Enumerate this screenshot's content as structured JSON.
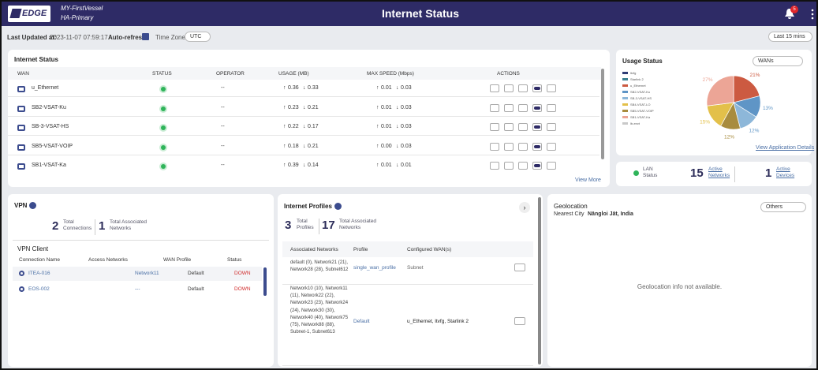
{
  "header": {
    "logo": "EDGE",
    "vessel": "MY-FirstVessel",
    "site": "HA-Primary",
    "title": "Internet Status",
    "notifications": "5"
  },
  "toolbar": {
    "last_updated_label": "Last Updated at:",
    "last_updated": "2023-11-07 07:59:17",
    "auto_refresh": "Auto-refresh",
    "time_zone_label": "Time Zone",
    "time_zone": "UTC",
    "range": "Last 15 mins"
  },
  "internet_status": {
    "title": "Internet Status",
    "columns": [
      "WAN",
      "STATUS",
      "OPERATOR",
      "USAGE (MB)",
      "MAX SPEED (Mbps)",
      "ACTIONS"
    ],
    "rows": [
      {
        "wan": "u_Ethernet",
        "operator": "--",
        "usage_up": "0.36",
        "usage_down": "0.33",
        "speed_up": "0.01",
        "speed_down": "0.03"
      },
      {
        "wan": "SB2-VSAT-Ku",
        "operator": "--",
        "usage_up": "0.23",
        "usage_down": "0.21",
        "speed_up": "0.01",
        "speed_down": "0.03"
      },
      {
        "wan": "SB-3-VSAT-HS",
        "operator": "--",
        "usage_up": "0.22",
        "usage_down": "0.17",
        "speed_up": "0.01",
        "speed_down": "0.03"
      },
      {
        "wan": "SB5-VSAT-VOIP",
        "operator": "--",
        "usage_up": "0.18",
        "usage_down": "0.21",
        "speed_up": "0.00",
        "speed_down": "0.03"
      },
      {
        "wan": "SB1-VSAT-Ka",
        "operator": "--",
        "usage_up": "0.39",
        "usage_down": "0.14",
        "speed_up": "0.01",
        "speed_down": "0.01"
      }
    ],
    "view_more": "View More"
  },
  "chart_data": {
    "type": "pie",
    "title": "Usage Status",
    "selector": "WANs",
    "values": [
      21,
      13,
      12,
      12,
      15,
      27
    ],
    "value_labels": [
      "21%",
      "13%",
      "12%",
      "12%",
      "15%",
      "27%"
    ],
    "colors": [
      "#cc5a41",
      "#5f95c6",
      "#8db7d9",
      "#a88c3e",
      "#e3c04a",
      "#eca596"
    ],
    "legend": [
      {
        "name": "ltvfg",
        "color": "#2f3b75"
      },
      {
        "name": "Starlink 2",
        "color": "#3b7f8f"
      },
      {
        "name": "u_Ethernet",
        "color": "#cc5a41"
      },
      {
        "name": "SB2-VSAT-Ku",
        "color": "#5f95c6"
      },
      {
        "name": "SB-3-VSAT-HS",
        "color": "#8db7d9"
      },
      {
        "name": "SB4-VSAT-LO",
        "color": "#e3c04a"
      },
      {
        "name": "SB5-VSAT-VOIP",
        "color": "#a88c3e"
      },
      {
        "name": "SB1-VSAT-Ka",
        "color": "#eca596"
      },
      {
        "name": "lb-envt",
        "color": "#c9c9c9"
      }
    ],
    "details_link": "View Application Details"
  },
  "stats": {
    "lan": "LAN Status",
    "networks_count": 15,
    "networks_label": "Active Networks",
    "devices_count": 1,
    "devices_label": "Active Devices"
  },
  "vpn": {
    "title": "VPN",
    "connections_count": 2,
    "connections_label": "Total Connections",
    "networks_count": 1,
    "networks_label": "Total Associated Networks",
    "client_title": "VPN Client",
    "columns": [
      "Connection Name",
      "Access Networks",
      "WAN Profile",
      "Status"
    ],
    "rows": [
      [
        "ITEA-016",
        "Network11",
        "Default",
        "DOWN"
      ],
      [
        "EOS-002",
        "---",
        "Default",
        "DOWN"
      ]
    ]
  },
  "profiles": {
    "title": "Internet Profiles",
    "profiles_count": 3,
    "profiles_label": "Total Profiles",
    "networks_count": 17,
    "networks_label": "Total Associated Networks",
    "columns": [
      "Associated Networks",
      "Profile",
      "Configured WAN(s)"
    ],
    "rows": [
      [
        "default (0), Network21 (21), Network28 (28), Subnet612",
        "single_wan_profile",
        "Subnet"
      ],
      [
        "Network10 (10), Network11 (11), Network22 (22), Network23 (23), Network24 (24), Network30 (30), Network40 (40), Network75 (75), Network88 (88), Subnet-1, Subnet613",
        "Default",
        "u_Ethernet, ltvfg, Starlink 2"
      ]
    ]
  },
  "geolocation": {
    "title": "Geolocation",
    "nearest_label": "Nearest City",
    "city": "Nāngloi Jāt, India",
    "selector": "Others",
    "message": "Geolocation info not available."
  }
}
